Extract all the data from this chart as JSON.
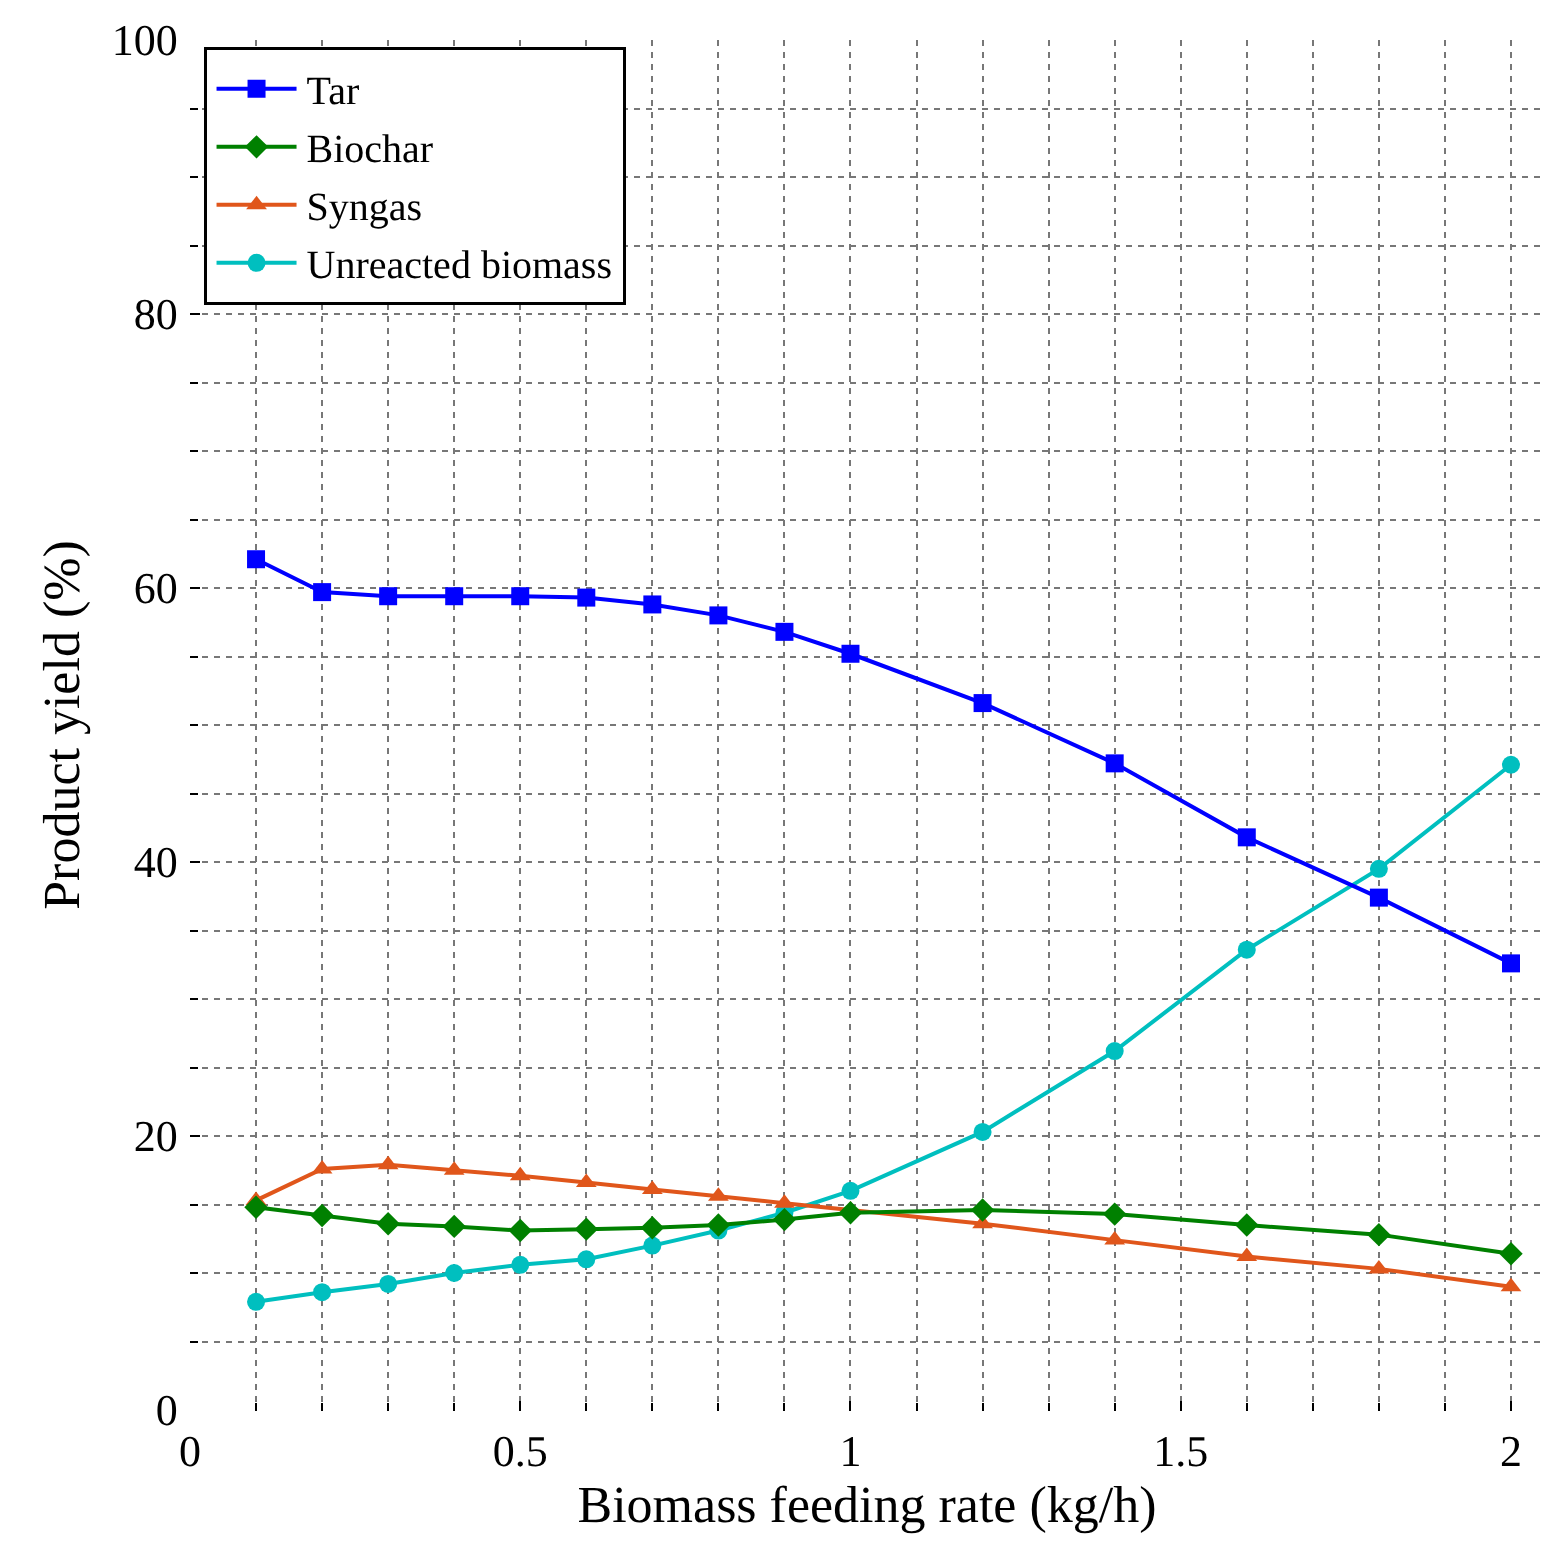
{
  "chart_data": {
    "type": "line",
    "xlabel": "Biomass feeding rate (kg/h)",
    "ylabel": "Product yield (%)",
    "x": [
      0.1,
      0.2,
      0.3,
      0.4,
      0.5,
      0.6,
      0.7,
      0.8,
      0.9,
      1.0,
      1.2,
      1.4,
      1.6,
      1.8,
      2.0
    ],
    "series": [
      {
        "name": "Tar",
        "color": "#0000ff",
        "marker": "square",
        "values": [
          62.1,
          59.7,
          59.4,
          59.4,
          59.4,
          59.3,
          58.8,
          58.0,
          56.8,
          55.2,
          51.6,
          47.2,
          41.8,
          37.4,
          32.6
        ]
      },
      {
        "name": "Biochar",
        "color": "#008000",
        "marker": "diamond",
        "values": [
          14.8,
          14.2,
          13.6,
          13.4,
          13.1,
          13.2,
          13.3,
          13.5,
          13.9,
          14.4,
          14.6,
          14.3,
          13.5,
          12.8,
          11.4
        ]
      },
      {
        "name": "Syngas",
        "color": "#e0561b",
        "marker": "triangle",
        "values": [
          15.3,
          17.6,
          17.9,
          17.5,
          17.1,
          16.6,
          16.1,
          15.6,
          15.1,
          14.6,
          13.6,
          12.4,
          11.2,
          10.3,
          9.0
        ]
      },
      {
        "name": "Unreacted biomass",
        "color": "#00bfbf",
        "marker": "circle",
        "values": [
          7.9,
          8.6,
          9.2,
          10.0,
          10.6,
          11.0,
          12.0,
          13.1,
          14.4,
          16.0,
          20.3,
          26.2,
          33.6,
          39.5,
          47.1
        ]
      }
    ],
    "xlim": [
      0,
      2.05
    ],
    "xticks": [
      0,
      {
        "value": 0.5,
        "label": "0.5"
      },
      1,
      1.5,
      2
    ],
    "ylim": [
      0,
      100
    ],
    "yticks": [
      0,
      20,
      40,
      60,
      80,
      100
    ],
    "grid": true,
    "legend": "top left",
    "line_style": "solid"
  }
}
